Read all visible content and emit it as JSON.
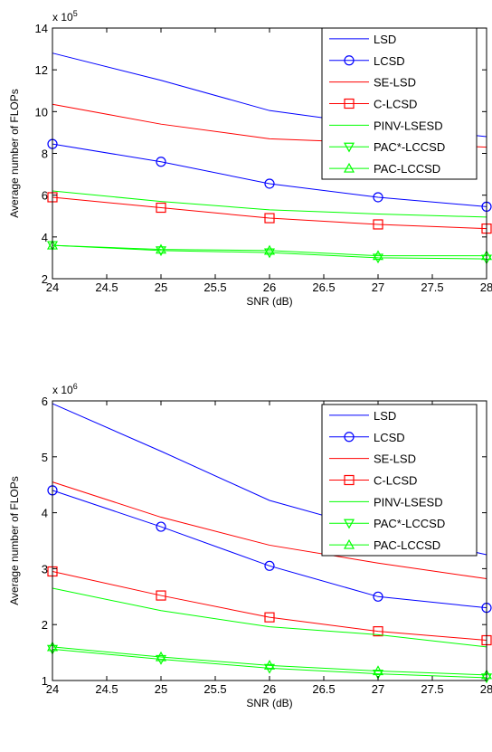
{
  "chart_data": [
    {
      "type": "line",
      "xlabel": "SNR (dB)",
      "ylabel": "Average number of FLOPs",
      "multiplier_label": "x 10",
      "multiplier_exp": "5",
      "xlim": [
        24,
        28
      ],
      "ylim": [
        2,
        14
      ],
      "xticks": [
        24,
        24.5,
        25,
        25.5,
        26,
        26.5,
        27,
        27.5,
        28
      ],
      "xtick_labels": [
        "24",
        "24.5",
        "25",
        "25.5",
        "26",
        "26.5",
        "27",
        "27.5",
        "28"
      ],
      "yticks": [
        2,
        4,
        6,
        8,
        10,
        12,
        14
      ],
      "ytick_labels": [
        "2",
        "4",
        "6",
        "8",
        "10",
        "12",
        "14"
      ],
      "legend_position": "top-right",
      "x": [
        24,
        25,
        26,
        27,
        28
      ],
      "series": [
        {
          "name": "LSD",
          "color": "#0000ff",
          "marker": "none",
          "values": [
            12.8,
            11.5,
            10.05,
            9.35,
            8.8
          ]
        },
        {
          "name": "LCSD",
          "color": "#0000ff",
          "marker": "circle",
          "values": [
            8.45,
            7.6,
            6.55,
            5.9,
            5.45
          ]
        },
        {
          "name": "SE-LSD",
          "color": "#ff0000",
          "marker": "none",
          "values": [
            10.35,
            9.4,
            8.7,
            8.5,
            8.3
          ]
        },
        {
          "name": "C-LCSD",
          "color": "#ff0000",
          "marker": "square",
          "values": [
            5.9,
            5.4,
            4.9,
            4.6,
            4.4
          ]
        },
        {
          "name": "PINV-LSESD",
          "color": "#00ff00",
          "marker": "none",
          "values": [
            6.2,
            5.7,
            5.3,
            5.1,
            4.95
          ]
        },
        {
          "name": "PAC*-LCCSD",
          "color": "#00ff00",
          "marker": "triangle-down",
          "values": [
            3.6,
            3.35,
            3.25,
            3.0,
            2.95
          ]
        },
        {
          "name": "PAC-LCCSD",
          "color": "#00ff00",
          "marker": "triangle-up",
          "values": [
            3.6,
            3.4,
            3.35,
            3.1,
            3.1
          ]
        }
      ]
    },
    {
      "type": "line",
      "xlabel": "SNR (dB)",
      "ylabel": "Average number of FLOPs",
      "multiplier_label": "x 10",
      "multiplier_exp": "6",
      "xlim": [
        24,
        28
      ],
      "ylim": [
        1,
        6
      ],
      "xticks": [
        24,
        24.5,
        25,
        25.5,
        26,
        26.5,
        27,
        27.5,
        28
      ],
      "xtick_labels": [
        "24",
        "24.5",
        "25",
        "25.5",
        "26",
        "26.5",
        "27",
        "27.5",
        "28"
      ],
      "yticks": [
        1,
        2,
        3,
        4,
        5,
        6
      ],
      "ytick_labels": [
        "1",
        "2",
        "3",
        "4",
        "5",
        "6"
      ],
      "legend_position": "top-right",
      "x": [
        24,
        25,
        26,
        27,
        28
      ],
      "series": [
        {
          "name": "LSD",
          "color": "#0000ff",
          "marker": "none",
          "values": [
            5.95,
            5.1,
            4.22,
            3.68,
            3.25
          ]
        },
        {
          "name": "LCSD",
          "color": "#0000ff",
          "marker": "circle",
          "values": [
            4.4,
            3.75,
            3.05,
            2.5,
            2.3
          ]
        },
        {
          "name": "SE-LSD",
          "color": "#ff0000",
          "marker": "none",
          "values": [
            4.55,
            3.92,
            3.42,
            3.1,
            2.82
          ]
        },
        {
          "name": "C-LCSD",
          "color": "#ff0000",
          "marker": "square",
          "values": [
            2.95,
            2.52,
            2.13,
            1.88,
            1.72
          ]
        },
        {
          "name": "PINV-LSESD",
          "color": "#00ff00",
          "marker": "none",
          "values": [
            2.65,
            2.25,
            1.96,
            1.82,
            1.6
          ]
        },
        {
          "name": "PAC*-LCCSD",
          "color": "#00ff00",
          "marker": "triangle-down",
          "values": [
            1.56,
            1.38,
            1.22,
            1.12,
            1.05
          ]
        },
        {
          "name": "PAC-LCCSD",
          "color": "#00ff00",
          "marker": "triangle-up",
          "values": [
            1.6,
            1.42,
            1.27,
            1.17,
            1.1
          ]
        }
      ]
    }
  ]
}
